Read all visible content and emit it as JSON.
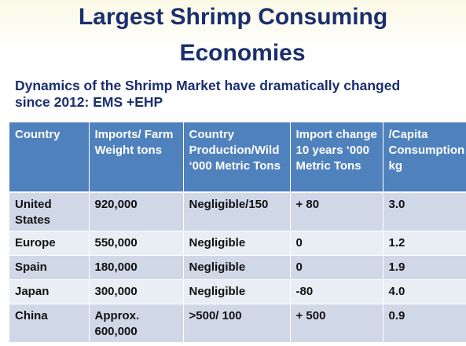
{
  "title": {
    "line1": "Largest Shrimp Consuming",
    "line2": "Economies"
  },
  "subtitle": {
    "line1": "Dynamics of the Shrimp Market have dramatically changed",
    "line2": "since 2012:  EMS +EHP"
  },
  "table": {
    "headers": [
      "Country",
      "Imports/ Farm Weight tons",
      "Country Production/Wild ‘000 Metric Tons",
      "Import change 10 years ‘000 Metric Tons",
      "/Capita Consumption kg"
    ],
    "rows": [
      {
        "country": "United States",
        "imports": "920,000",
        "production": "Negligible/150",
        "change": " + 80",
        "per_capita": "3.0"
      },
      {
        "country": "Europe",
        "imports": "550,000",
        "production": "Negligible",
        "change": "   0",
        "per_capita": "1.2"
      },
      {
        "country": "Spain",
        "imports": "180,000",
        "production": "Negligible",
        "change": "   0",
        "per_capita": "1.9"
      },
      {
        "country": "Japan",
        "imports": "300,000",
        "production": "Negligible",
        "change": " -80",
        "per_capita": "4.0"
      },
      {
        "country": "China",
        "imports": "Approx. 600,000",
        "production": ">500/ 100",
        "change": "+ 500",
        "per_capita": "0.9"
      }
    ]
  },
  "colors": {
    "title": "#1b2f6e",
    "header_bg": "#4f81bd",
    "row_dark": "#d0d8e8",
    "row_light": "#e9edf4"
  }
}
